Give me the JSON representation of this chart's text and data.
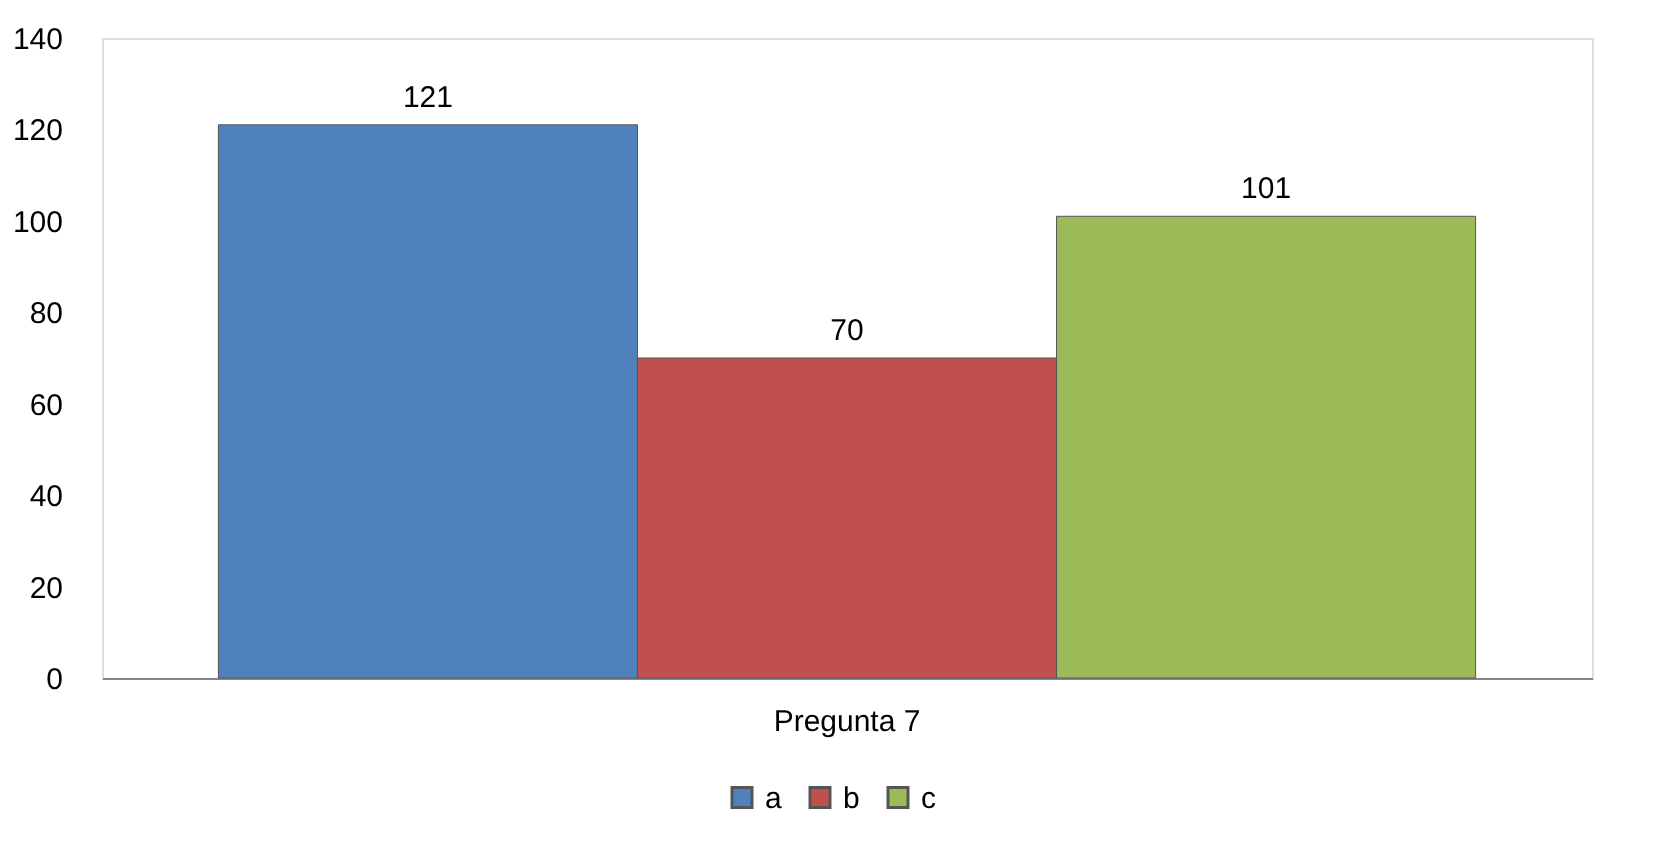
{
  "chart_data": {
    "type": "bar",
    "categories": [
      "Pregunta 7"
    ],
    "series": [
      {
        "name": "a",
        "color": "#4f81bd",
        "values": [
          121
        ]
      },
      {
        "name": "b",
        "color": "#c0504d",
        "values": [
          70
        ]
      },
      {
        "name": "c",
        "color": "#9bbb59",
        "values": [
          101
        ]
      }
    ],
    "ylim": [
      0,
      140
    ],
    "yticks": [
      0,
      20,
      40,
      60,
      80,
      100,
      120,
      140
    ],
    "grid": false,
    "legend": "bottom",
    "data_labels": true
  }
}
